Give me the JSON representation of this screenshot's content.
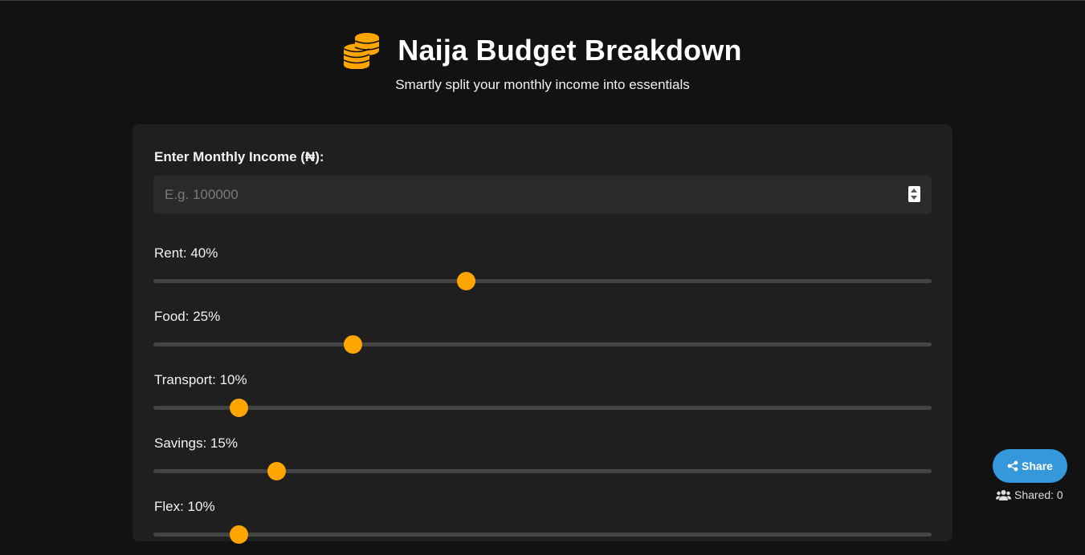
{
  "header": {
    "title": "Naija Budget Breakdown",
    "subtitle": "Smartly split your monthly income into essentials",
    "icon": "coins-icon"
  },
  "income": {
    "label": "Enter Monthly Income (₦):",
    "value": "",
    "placeholder": "E.g. 100000"
  },
  "sliders": [
    {
      "label": "Rent: 40%",
      "percent": 40
    },
    {
      "label": "Food: 25%",
      "percent": 25
    },
    {
      "label": "Transport: 10%",
      "percent": 10
    },
    {
      "label": "Savings: 15%",
      "percent": 15
    },
    {
      "label": "Flex: 10%",
      "percent": 10
    }
  ],
  "share": {
    "button_label": "Share",
    "shared_label": "Shared: 0",
    "icon": "share-icon",
    "shared_icon": "users-icon"
  },
  "colors": {
    "accent": "#ffa500",
    "share_button": "#3498db",
    "background": "#121212",
    "card": "#1f1f1f"
  }
}
